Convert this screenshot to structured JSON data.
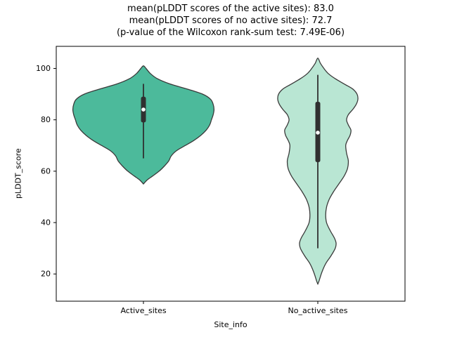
{
  "chart_data": {
    "type": "violin",
    "title_lines": [
      "mean(pLDDT scores of the active sites): 83.0",
      "mean(pLDDT scores of no active sites): 72.7",
      "(p-value of the Wilcoxon rank-sum test: 7.49E-06)"
    ],
    "xlabel": "Site_info",
    "ylabel": "pLDDT_score",
    "ylim": [
      9.4,
      108.6
    ],
    "yticks": [
      20,
      40,
      60,
      80,
      100
    ],
    "categories": [
      "Active_sites",
      "No_active_sites"
    ],
    "legend": "none",
    "grid": false,
    "spine_color": "#000000",
    "edge_color": "#3a3a3a",
    "box_color": "#303030",
    "median_dot_color": "#ffffff",
    "stats": {
      "mean_active_sites": 83.0,
      "mean_no_active_sites": 72.7,
      "wilcoxon_p_value": "7.49E-06"
    },
    "violins": [
      {
        "category": "Active_sites",
        "fill": "#4cba9b",
        "value_range": [
          55,
          101
        ],
        "profile": [
          [
            55.0,
            0.0
          ],
          [
            56.5,
            0.02
          ],
          [
            58,
            0.05
          ],
          [
            60,
            0.09
          ],
          [
            62,
            0.12
          ],
          [
            64,
            0.145
          ],
          [
            66,
            0.16
          ],
          [
            68,
            0.19
          ],
          [
            70,
            0.24
          ],
          [
            72,
            0.29
          ],
          [
            74,
            0.33
          ],
          [
            76,
            0.36
          ],
          [
            78,
            0.38
          ],
          [
            80,
            0.39
          ],
          [
            82,
            0.4
          ],
          [
            84,
            0.405
          ],
          [
            86,
            0.4
          ],
          [
            88,
            0.385
          ],
          [
            90,
            0.34
          ],
          [
            92,
            0.25
          ],
          [
            94,
            0.15
          ],
          [
            96,
            0.08
          ],
          [
            98,
            0.04
          ],
          [
            100,
            0.015
          ],
          [
            101,
            0.0
          ]
        ],
        "box": {
          "whisker_low": 65,
          "q1": 79,
          "median": 84,
          "q3": 89,
          "whisker_high": 94
        }
      },
      {
        "category": "No_active_sites",
        "fill": "#b9e6d3",
        "value_range": [
          16,
          104
        ],
        "profile": [
          [
            16,
            0.0
          ],
          [
            17.5,
            0.008
          ],
          [
            19,
            0.015
          ],
          [
            21,
            0.025
          ],
          [
            24,
            0.045
          ],
          [
            27,
            0.075
          ],
          [
            30,
            0.1
          ],
          [
            32,
            0.105
          ],
          [
            34,
            0.095
          ],
          [
            37,
            0.07
          ],
          [
            40,
            0.05
          ],
          [
            43,
            0.045
          ],
          [
            46,
            0.05
          ],
          [
            49,
            0.065
          ],
          [
            52,
            0.09
          ],
          [
            55,
            0.12
          ],
          [
            58,
            0.15
          ],
          [
            61,
            0.17
          ],
          [
            64,
            0.175
          ],
          [
            67,
            0.165
          ],
          [
            70,
            0.16
          ],
          [
            72,
            0.17
          ],
          [
            74,
            0.185
          ],
          [
            76,
            0.19
          ],
          [
            78,
            0.175
          ],
          [
            80,
            0.165
          ],
          [
            82,
            0.175
          ],
          [
            84,
            0.2
          ],
          [
            86,
            0.22
          ],
          [
            88,
            0.23
          ],
          [
            90,
            0.225
          ],
          [
            92,
            0.2
          ],
          [
            94,
            0.15
          ],
          [
            96,
            0.1
          ],
          [
            98,
            0.06
          ],
          [
            100,
            0.035
          ],
          [
            102,
            0.015
          ],
          [
            104,
            0.0
          ]
        ],
        "box": {
          "whisker_low": 30,
          "q1": 63.5,
          "median": 75,
          "q3": 87,
          "whisker_high": 97.5
        }
      }
    ]
  }
}
